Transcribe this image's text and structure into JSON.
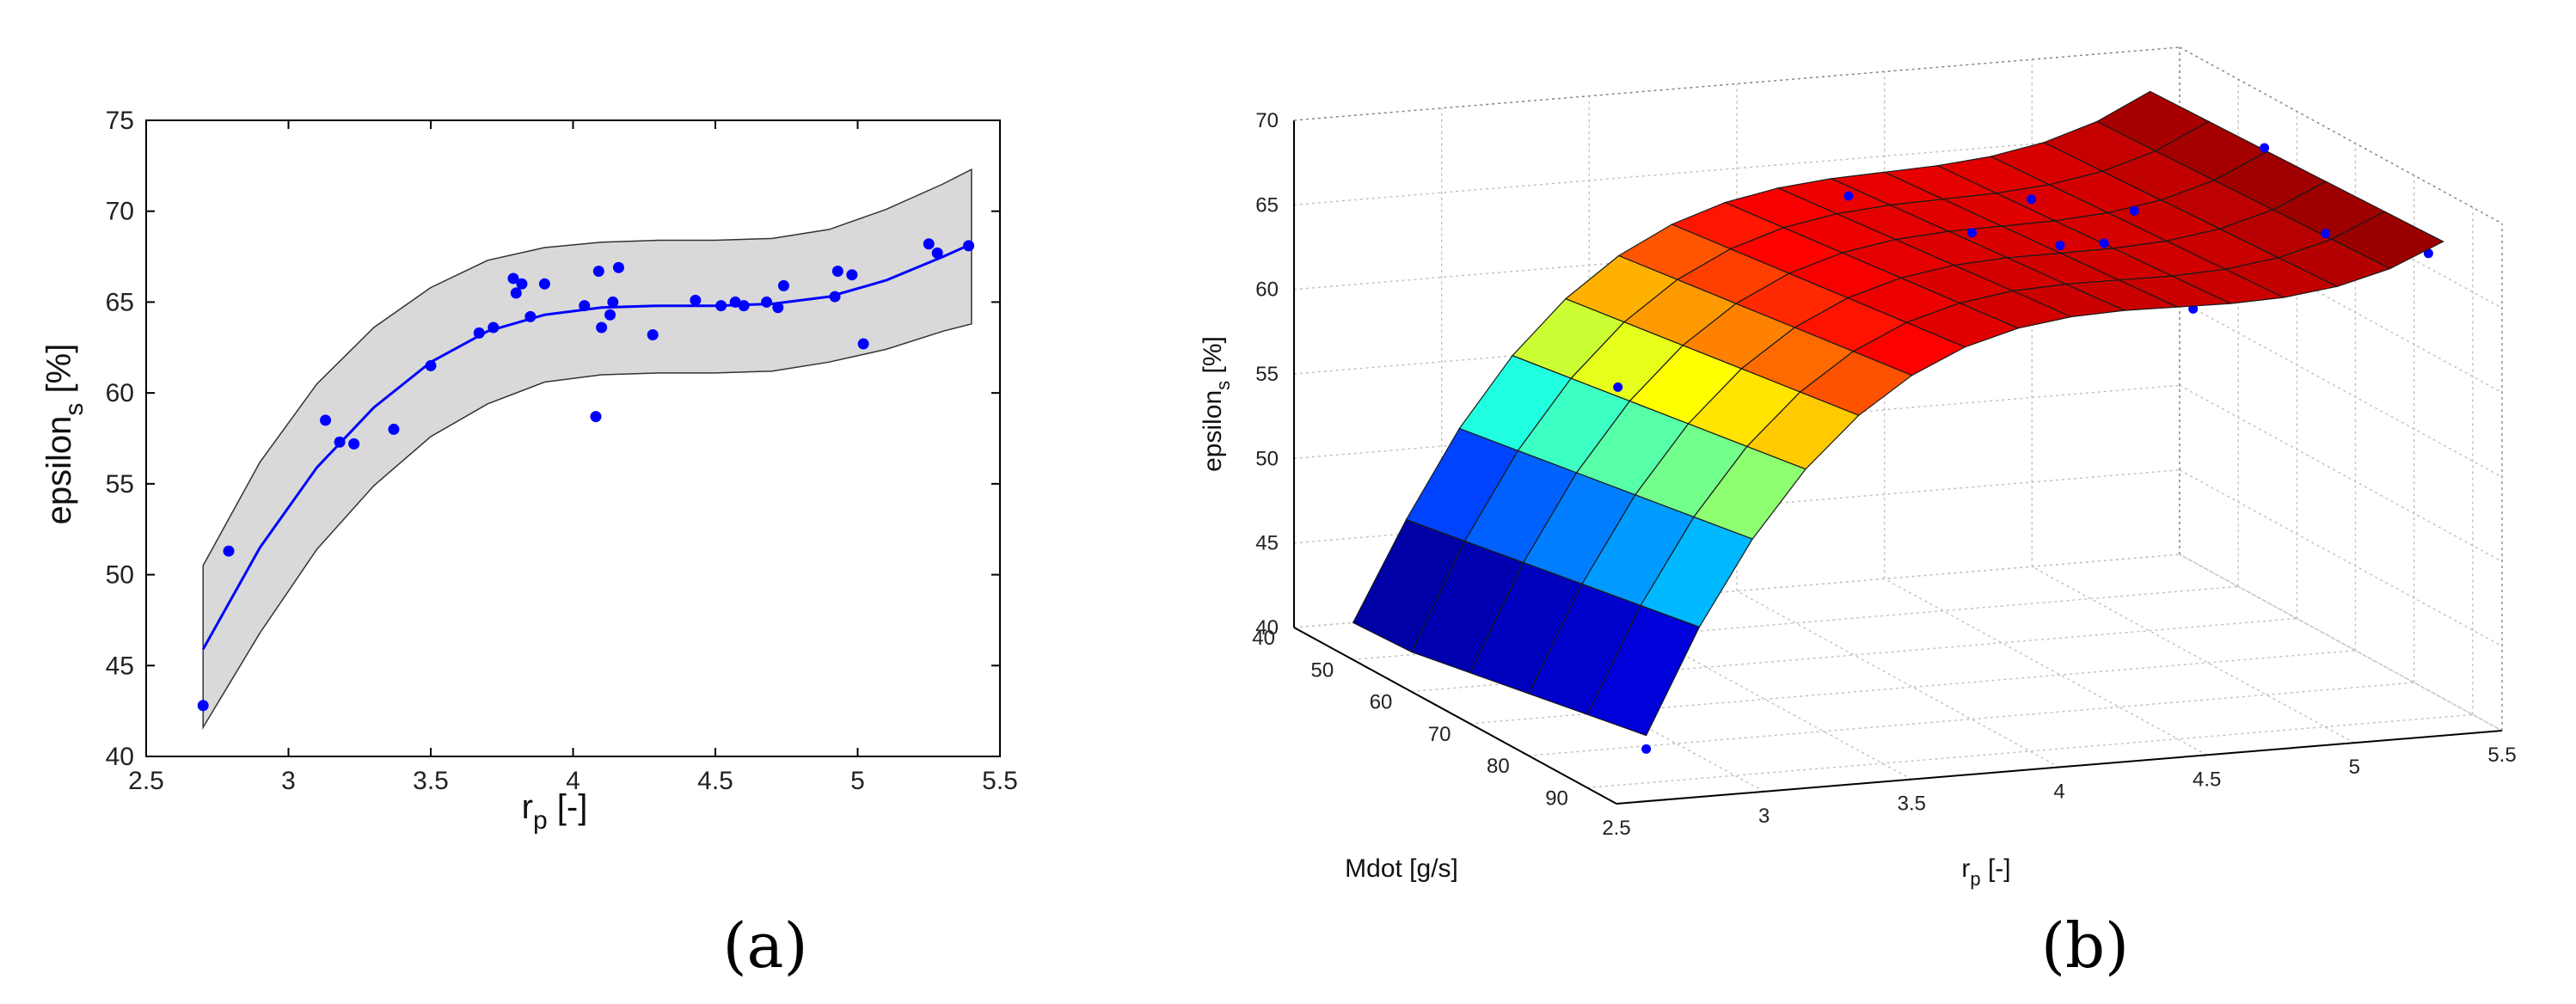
{
  "chart_data": [
    {
      "panel": "a",
      "type": "scatter",
      "panel_label": "(a)",
      "xlabel_main": "r",
      "xlabel_sub": "p",
      "xlabel_tail": " [-]",
      "ylabel_main": "epsilon",
      "ylabel_sub": "s",
      "ylabel_tail": " [%]",
      "xlim": [
        2.5,
        5.5
      ],
      "ylim": [
        40,
        75
      ],
      "xticks": [
        "2.5",
        "3",
        "3.5",
        "4",
        "4.5",
        "5",
        "5.5"
      ],
      "yticks": [
        "40",
        "45",
        "50",
        "55",
        "60",
        "65",
        "70",
        "75"
      ],
      "grid": false,
      "fit_curve": {
        "x": [
          2.7,
          2.9,
          3.1,
          3.3,
          3.5,
          3.7,
          3.9,
          4.1,
          4.3,
          4.5,
          4.7,
          4.9,
          5.1,
          5.3,
          5.4
        ],
        "y": [
          45.9,
          51.5,
          55.9,
          59.2,
          61.7,
          63.4,
          64.3,
          64.7,
          64.8,
          64.8,
          64.9,
          65.3,
          66.2,
          67.5,
          68.2
        ]
      },
      "band_upper": {
        "x": [
          2.7,
          2.9,
          3.1,
          3.3,
          3.5,
          3.7,
          3.9,
          4.1,
          4.3,
          4.5,
          4.7,
          4.9,
          5.1,
          5.3,
          5.4
        ],
        "y": [
          50.5,
          56.2,
          60.5,
          63.6,
          65.8,
          67.3,
          68.0,
          68.3,
          68.4,
          68.4,
          68.5,
          69.0,
          70.1,
          71.5,
          72.3
        ]
      },
      "band_lower": {
        "x": [
          2.7,
          2.9,
          3.1,
          3.3,
          3.5,
          3.7,
          3.9,
          4.1,
          4.3,
          4.5,
          4.7,
          4.9,
          5.1,
          5.3,
          5.4
        ],
        "y": [
          41.6,
          46.8,
          51.4,
          54.9,
          57.6,
          59.4,
          60.6,
          61.0,
          61.1,
          61.1,
          61.2,
          61.7,
          62.4,
          63.4,
          63.8
        ]
      },
      "points": {
        "x": [
          2.7,
          2.79,
          3.13,
          3.18,
          3.23,
          3.37,
          3.5,
          3.67,
          3.72,
          3.79,
          3.8,
          3.82,
          3.85,
          3.9,
          4.04,
          4.08,
          4.09,
          4.1,
          4.13,
          4.14,
          4.16,
          4.28,
          4.43,
          4.52,
          4.57,
          4.6,
          4.68,
          4.72,
          4.74,
          4.92,
          4.93,
          4.98,
          5.02,
          5.25,
          5.28,
          5.39
        ],
        "y": [
          42.8,
          51.3,
          58.5,
          57.3,
          57.2,
          58.0,
          61.5,
          63.3,
          63.6,
          66.3,
          65.5,
          66.0,
          64.2,
          66.0,
          64.8,
          58.7,
          66.7,
          63.6,
          64.3,
          65.0,
          66.9,
          63.2,
          65.1,
          64.8,
          65.0,
          64.8,
          65.0,
          64.7,
          65.9,
          65.3,
          66.7,
          66.5,
          62.7,
          68.2,
          67.7,
          68.1
        ]
      },
      "colors": {
        "curve": "#0000ff",
        "points": "#0000ff",
        "band": "#d9d9d9"
      }
    },
    {
      "panel": "b",
      "type": "surface",
      "panel_label": "(b)",
      "xlabel_main": "r",
      "xlabel_sub": "p",
      "xlabel_tail": " [-]",
      "ylabel": "Mdot [g/s]",
      "zlabel_main": "epsilon",
      "zlabel_sub": "s",
      "zlabel_tail": " [%]",
      "xlim": [
        2.5,
        5.5
      ],
      "ylim": [
        40,
        95
      ],
      "zlim": [
        40,
        70
      ],
      "xticks": [
        "2.5",
        "3",
        "3.5",
        "4",
        "4.5",
        "5",
        "5.5"
      ],
      "yticks": [
        "40",
        "50",
        "60",
        "70",
        "80",
        "90"
      ],
      "zticks": [
        "40",
        "45",
        "50",
        "55",
        "60",
        "65",
        "70"
      ],
      "grid": true,
      "surface_x": [
        2.7,
        2.88,
        3.06,
        3.24,
        3.42,
        3.6,
        3.78,
        3.96,
        4.14,
        4.32,
        4.5,
        4.68,
        4.86,
        5.04,
        5.22,
        5.4
      ],
      "surface_y": [
        40,
        50,
        60,
        70,
        80,
        90
      ],
      "surface_z_formula": "eps(rp) + 0.04*(Mdot-65) - 0.5*(rp-4)*(Mdot-65)/25, eps = 3rd-order fit of panel (a)",
      "points": {
        "x": [
          2.7,
          3.2,
          3.25,
          3.65,
          3.8,
          3.85,
          3.95,
          4.05,
          4.1,
          4.18,
          4.22,
          4.25,
          4.3,
          4.35,
          4.4,
          4.45,
          4.55,
          4.6,
          4.7,
          4.75,
          4.85,
          4.95,
          5.1,
          5.2,
          5.3,
          5.35,
          5.39
        ],
        "y": [
          90,
          60,
          70,
          50,
          45,
          55,
          60,
          65,
          70,
          50,
          55,
          60,
          65,
          70,
          75,
          80,
          45,
          50,
          55,
          60,
          65,
          70,
          75,
          80,
          85,
          90,
          60
        ],
        "z": [
          42.0,
          57.0,
          56.0,
          61.0,
          62.0,
          59.5,
          63.0,
          64.0,
          62.5,
          65.0,
          63.5,
          64.0,
          65.5,
          63.0,
          66.5,
          67.5,
          64.0,
          61.5,
          65.0,
          63.0,
          66.0,
          61.0,
          64.5,
          67.0,
          66.5,
          67.5,
          68.0
        ]
      },
      "colors": {
        "points": "#0000ff",
        "edges": "#1a1a1a",
        "grid": "#c0c0c0"
      }
    }
  ]
}
